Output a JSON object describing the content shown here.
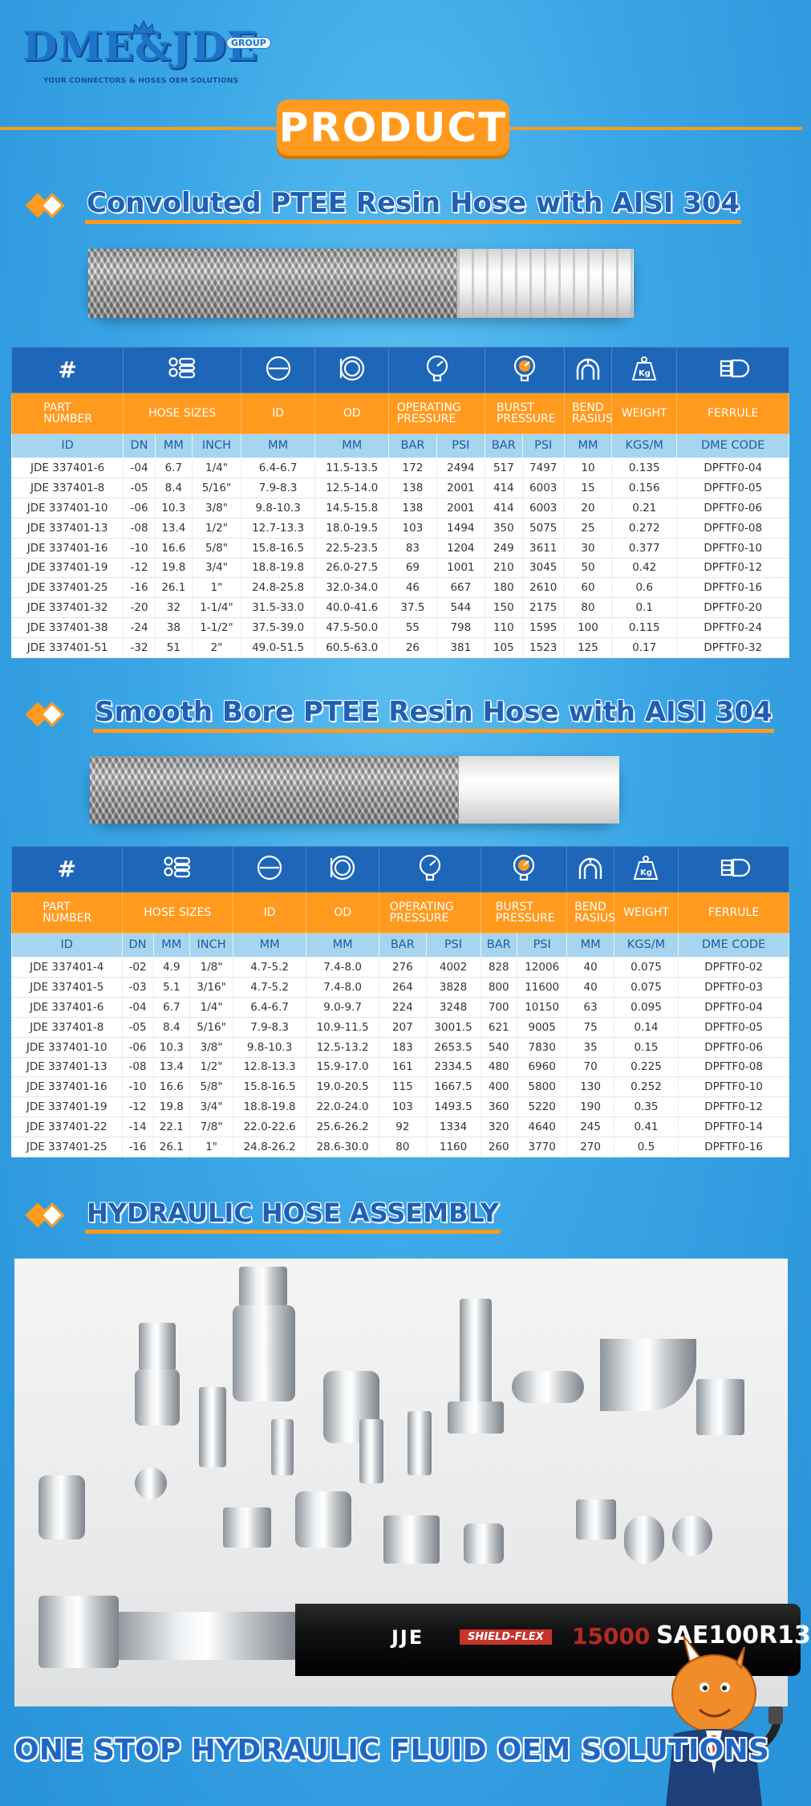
{
  "header": {
    "logo_text": "DME&JDE",
    "logo_group": "GROUP",
    "logo_tagline": "YOUR CONNECTORS & HOSES OEM SOLUTIONS"
  },
  "banner": {
    "title": "PRODUCT"
  },
  "colors": {
    "accent_orange": "#ff9a1f",
    "brand_blue": "#1e66b8",
    "title_blue": "#1f5fb5",
    "unit_row": "#a7d5f0"
  },
  "section1": {
    "title": "Convoluted PTEE Resin Hose with AISI 304",
    "table": {
      "icon_row": [
        "#",
        "hose-sizes-icon",
        "id-circle-icon",
        "od-circle-icon",
        "pressure-gauge-icon",
        "burst-gauge-icon",
        "bend-radius-icon",
        "weight-kg-icon",
        "ferrule-icon"
      ],
      "label_row": [
        "PART NUMBER",
        "HOSE SIZES",
        "ID",
        "OD",
        "OPERATING PRESSURE",
        "BURST PRESSURE",
        "BEND RASIUS",
        "WEIGHT",
        "FERRULE"
      ],
      "unit_row": [
        "ID",
        "DN",
        "MM",
        "INCH",
        "MM",
        "MM",
        "BAR",
        "PSI",
        "BAR",
        "PSI",
        "MM",
        "KGS/M",
        "DME CODE"
      ],
      "rows": [
        [
          "JDE 337401-6",
          "-04",
          "6.7",
          "1/4\"",
          "6.4-6.7",
          "11.5-13.5",
          "172",
          "2494",
          "517",
          "7497",
          "10",
          "0.135",
          "DPFTF0-04"
        ],
        [
          "JDE 337401-8",
          "-05",
          "8.4",
          "5/16\"",
          "7.9-8.3",
          "12.5-14.0",
          "138",
          "2001",
          "414",
          "6003",
          "15",
          "0.156",
          "DPFTF0-05"
        ],
        [
          "JDE 337401-10",
          "-06",
          "10.3",
          "3/8\"",
          "9.8-10.3",
          "14.5-15.8",
          "138",
          "2001",
          "414",
          "6003",
          "20",
          "0.21",
          "DPFTF0-06"
        ],
        [
          "JDE 337401-13",
          "-08",
          "13.4",
          "1/2\"",
          "12.7-13.3",
          "18.0-19.5",
          "103",
          "1494",
          "350",
          "5075",
          "25",
          "0.272",
          "DPFTF0-08"
        ],
        [
          "JDE 337401-16",
          "-10",
          "16.6",
          "5/8\"",
          "15.8-16.5",
          "22.5-23.5",
          "83",
          "1204",
          "249",
          "3611",
          "30",
          "0.377",
          "DPFTF0-10"
        ],
        [
          "JDE 337401-19",
          "-12",
          "19.8",
          "3/4\"",
          "18.8-19.8",
          "26.0-27.5",
          "69",
          "1001",
          "210",
          "3045",
          "50",
          "0.42",
          "DPFTF0-12"
        ],
        [
          "JDE 337401-25",
          "-16",
          "26.1",
          "1\"",
          "24.8-25.8",
          "32.0-34.0",
          "46",
          "667",
          "180",
          "2610",
          "60",
          "0.6",
          "DPFTF0-16"
        ],
        [
          "JDE 337401-32",
          "-20",
          "32",
          "1-1/4\"",
          "31.5-33.0",
          "40.0-41.6",
          "37.5",
          "544",
          "150",
          "2175",
          "80",
          "0.1",
          "DPFTF0-20"
        ],
        [
          "JDE 337401-38",
          "-24",
          "38",
          "1-1/2\"",
          "37.5-39.0",
          "47.5-50.0",
          "55",
          "798",
          "110",
          "1595",
          "100",
          "0.115",
          "DPFTF0-24"
        ],
        [
          "JDE 337401-51",
          "-32",
          "51",
          "2\"",
          "49.0-51.5",
          "60.5-63.0",
          "26",
          "381",
          "105",
          "1523",
          "125",
          "0.17",
          "DPFTF0-32"
        ]
      ]
    }
  },
  "section2": {
    "title": "Smooth Bore PTEE Resin Hose with AISI 304",
    "table": {
      "icon_row": [
        "#",
        "hose-sizes-icon",
        "id-circle-icon",
        "od-circle-icon",
        "pressure-gauge-icon",
        "burst-gauge-icon",
        "bend-radius-icon",
        "weight-kg-icon",
        "ferrule-icon"
      ],
      "label_row": [
        "PART NUMBER",
        "HOSE SIZES",
        "ID",
        "OD",
        "OPERATING PRESSURE",
        "BURST PRESSURE",
        "BEND RASIUS",
        "WEIGHT",
        "FERRULE"
      ],
      "unit_row": [
        "ID",
        "DN",
        "MM",
        "INCH",
        "MM",
        "MM",
        "BAR",
        "PSI",
        "BAR",
        "PSI",
        "MM",
        "KGS/M",
        "DME CODE"
      ],
      "rows": [
        [
          "JDE 337401-4",
          "-02",
          "4.9",
          "1/8\"",
          "4.7-5.2",
          "7.4-8.0",
          "276",
          "4002",
          "828",
          "12006",
          "40",
          "0.075",
          "DPFTF0-02"
        ],
        [
          "JDE 337401-5",
          "-03",
          "5.1",
          "3/16\"",
          "4.7-5.2",
          "7.4-8.0",
          "264",
          "3828",
          "800",
          "11600",
          "40",
          "0.075",
          "DPFTF0-03"
        ],
        [
          "JDE 337401-6",
          "-04",
          "6.7",
          "1/4\"",
          "6.4-6.7",
          "9.0-9.7",
          "224",
          "3248",
          "700",
          "10150",
          "63",
          "0.095",
          "DPFTF0-04"
        ],
        [
          "JDE 337401-8",
          "-05",
          "8.4",
          "5/16\"",
          "7.9-8.3",
          "10.9-11.5",
          "207",
          "3001.5",
          "621",
          "9005",
          "75",
          "0.14",
          "DPFTF0-05"
        ],
        [
          "JDE 337401-10",
          "-06",
          "10.3",
          "3/8\"",
          "9.8-10.3",
          "12.5-13.2",
          "183",
          "2653.5",
          "540",
          "7830",
          "35",
          "0.15",
          "DPFTF0-06"
        ],
        [
          "JDE 337401-13",
          "-08",
          "13.4",
          "1/2\"",
          "12.8-13.3",
          "15.9-17.0",
          "161",
          "2334.5",
          "480",
          "6960",
          "70",
          "0.225",
          "DPFTF0-08"
        ],
        [
          "JDE 337401-16",
          "-10",
          "16.6",
          "5/8\"",
          "15.8-16.5",
          "19.0-20.5",
          "115",
          "1667.5",
          "400",
          "5800",
          "130",
          "0.252",
          "DPFTF0-10"
        ],
        [
          "JDE 337401-19",
          "-12",
          "19.8",
          "3/4\"",
          "18.8-19.8",
          "22.0-24.0",
          "103",
          "1493.5",
          "360",
          "5220",
          "190",
          "0.35",
          "DPFTF0-12"
        ],
        [
          "JDE 337401-22",
          "-14",
          "22.1",
          "7/8\"",
          "22.0-22.6",
          "25.6-26.2",
          "92",
          "1334",
          "320",
          "4640",
          "245",
          "0.41",
          "DPFTF0-14"
        ],
        [
          "JDE 337401-25",
          "-16",
          "26.1",
          "1\"",
          "24.8-26.2",
          "28.6-30.0",
          "80",
          "1160",
          "260",
          "3770",
          "270",
          "0.5",
          "DPFTF0-16"
        ]
      ]
    }
  },
  "section3": {
    "title": "HYDRAULIC HOSE ASSEMBLY",
    "hose_print": {
      "brand": "JJE",
      "label": "SHIELD-FLEX",
      "pressure": "15000",
      "spec": "SAE100R13"
    }
  },
  "footer": {
    "tagline": "ONE STOP HYDRAULIC FLUID OEM SOLUTIONS"
  }
}
